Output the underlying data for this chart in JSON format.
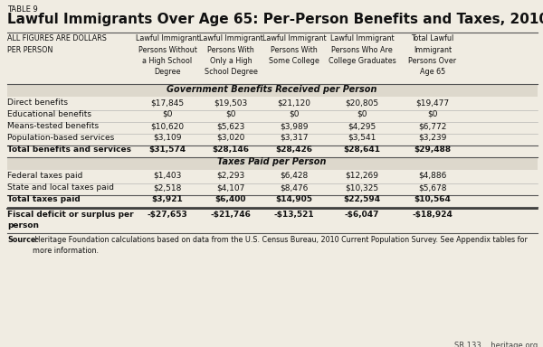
{
  "table_label": "TABLE 9",
  "title": "Lawful Immigrants Over Age 65: Per-Person Benefits and Taxes, 2010",
  "col_header_label": "ALL FIGURES ARE DOLLARS\nPER PERSON",
  "col_headers": [
    "Lawful Immigrant\nPersons Without\na High School\nDegree",
    "Lawful Immigrant\nPersons With\nOnly a High\nSchool Degree",
    "Lawful Immigrant\nPersons With\nSome College",
    "Lawful Immigrant\nPersons Who Are\nCollege Graduates",
    "Total Lawful\nImmigrant\nPersons Over\nAge 65"
  ],
  "section1_header": "Government Benefits Received per Person",
  "section1_rows": [
    [
      "Direct benefits",
      "$17,845",
      "$19,503",
      "$21,120",
      "$20,805",
      "$19,477"
    ],
    [
      "Educational benefits",
      "$0",
      "$0",
      "$0",
      "$0",
      "$0"
    ],
    [
      "Means-tested benefits",
      "$10,620",
      "$5,623",
      "$3,989",
      "$4,295",
      "$6,772"
    ],
    [
      "Population-based services",
      "$3,109",
      "$3,020",
      "$3,317",
      "$3,541",
      "$3,239"
    ]
  ],
  "section1_total_row": [
    "Total benefits and services",
    "$31,574",
    "$28,146",
    "$28,426",
    "$28,641",
    "$29,488"
  ],
  "section2_header": "Taxes Paid per Person",
  "section2_rows": [
    [
      "Federal taxes paid",
      "$1,403",
      "$2,293",
      "$6,428",
      "$12,269",
      "$4,886"
    ],
    [
      "State and local taxes paid",
      "$2,518",
      "$4,107",
      "$8,476",
      "$10,325",
      "$5,678"
    ]
  ],
  "section2_total_row": [
    "Total taxes paid",
    "$3,921",
    "$6,400",
    "$14,905",
    "$22,594",
    "$10,564"
  ],
  "fiscal_row_label": "Fiscal deficit or surplus per\nperson",
  "fiscal_row_vals": [
    "-$27,653",
    "-$21,746",
    "-$13,521",
    "-$6,047",
    "-$18,924"
  ],
  "source_bold": "Source:",
  "source_rest": " Heritage Foundation calculations based on data from the U.S. Census Bureau, 2010 Current Population Survey. See Appendix tables for\nmore information.",
  "footer_text": "SR 133    heritage.org",
  "bg_color": "#f0ece2",
  "line_color": "#888888",
  "line_dark": "#555555",
  "text_color": "#111111",
  "subtext_color": "#444444"
}
